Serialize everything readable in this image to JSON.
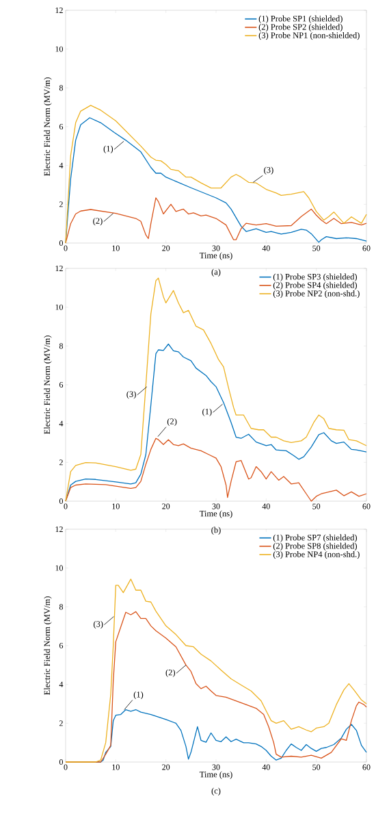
{
  "chart_data": [
    {
      "type": "line",
      "xlabel": "Time (ns)",
      "ylabel": "Electric Field Norm (MV/m)",
      "xlim": [
        0,
        60
      ],
      "ylim": [
        0,
        12
      ],
      "xticks": [
        0,
        10,
        20,
        30,
        40,
        50,
        60
      ],
      "yticks": [
        0,
        2,
        4,
        6,
        8,
        10,
        12
      ],
      "legend": "top right",
      "series": [
        {
          "name": "(1) Probe SP1 (shielded)",
          "color": "#0072bd",
          "x": [
            0,
            1,
            2,
            3,
            4.8,
            7,
            9.7,
            12,
            15,
            17,
            18,
            19,
            20,
            25,
            30,
            32,
            33,
            35,
            36,
            37,
            38,
            40,
            41,
            43,
            45,
            47,
            48,
            49,
            50.5,
            51,
            52,
            54,
            56,
            58,
            60
          ],
          "values": [
            0,
            3.3,
            5.3,
            6.1,
            6.46,
            6.2,
            5.7,
            5.3,
            4.7,
            3.9,
            3.6,
            3.6,
            3.4,
            2.85,
            2.33,
            2.07,
            1.75,
            0.87,
            0.6,
            0.67,
            0.74,
            0.55,
            0.6,
            0.46,
            0.55,
            0.71,
            0.67,
            0.48,
            0.04,
            0.17,
            0.33,
            0.23,
            0.27,
            0.23,
            0.1
          ]
        },
        {
          "name": "(2) Probe SP2 (shielded)",
          "color": "#d95319",
          "x": [
            0,
            1,
            2,
            3,
            5,
            10,
            14,
            15,
            16,
            16.5,
            17,
            18,
            18.5,
            19.5,
            21,
            22,
            23.5,
            24.5,
            25.5,
            27,
            28,
            30,
            32,
            33.5,
            34,
            35,
            36,
            38,
            40,
            42,
            45,
            47,
            49,
            50,
            51,
            52,
            53.5,
            55,
            57,
            59,
            60
          ],
          "values": [
            0,
            1.0,
            1.5,
            1.65,
            1.73,
            1.53,
            1.27,
            1.12,
            0.42,
            0.23,
            1.0,
            2.33,
            2.14,
            1.5,
            2.0,
            1.63,
            1.75,
            1.5,
            1.56,
            1.4,
            1.44,
            1.27,
            0.93,
            0.17,
            0.17,
            0.74,
            1.02,
            0.93,
            1.0,
            0.87,
            0.9,
            1.37,
            1.75,
            1.44,
            1.18,
            1.0,
            1.27,
            1.0,
            1.06,
            0.93,
            1.02
          ]
        },
        {
          "name": "(3) Probe NP1 (non-shielded)",
          "color": "#edb120",
          "x": [
            0,
            1,
            2,
            3,
            5,
            7,
            10,
            15,
            17,
            18,
            19,
            20,
            21,
            22.5,
            24,
            25,
            27,
            29,
            31,
            33,
            34,
            35,
            36.5,
            38,
            40,
            42,
            43,
            45,
            47.5,
            48.5,
            50,
            51.5,
            52.5,
            53.5,
            55.5,
            57,
            59,
            60
          ],
          "values": [
            0,
            4.5,
            6.2,
            6.8,
            7.1,
            6.85,
            6.3,
            5.0,
            4.43,
            4.27,
            4.24,
            4.05,
            3.8,
            3.73,
            3.4,
            3.4,
            3.1,
            2.84,
            2.84,
            3.4,
            3.54,
            3.4,
            3.13,
            3.1,
            2.77,
            2.58,
            2.46,
            2.52,
            2.65,
            2.33,
            1.63,
            1.18,
            1.37,
            1.6,
            1.02,
            1.35,
            1.02,
            1.48
          ]
        }
      ],
      "annotations": [
        {
          "text": "(1)",
          "x": 11.6,
          "y": 5.25
        },
        {
          "text": "(2)",
          "x": 9.5,
          "y": 1.53
        },
        {
          "text": "(3)",
          "x": 37.4,
          "y": 3.13
        },
        "(a)"
      ]
    },
    {
      "type": "line",
      "xlabel": "Time (ns)",
      "ylabel": "Electric Field Norm (MV/m)",
      "xlim": [
        0,
        60
      ],
      "ylim": [
        0,
        12
      ],
      "xticks": [
        0,
        10,
        20,
        30,
        40,
        50,
        60
      ],
      "yticks": [
        0,
        2,
        4,
        6,
        8,
        10,
        12
      ],
      "legend": "top right",
      "series": [
        {
          "name": "(1) Probe SP3 (shielded)",
          "color": "#0072bd",
          "x": [
            0,
            1,
            2,
            4,
            6,
            10,
            13,
            14,
            15,
            16,
            17,
            18,
            18.5,
            19.5,
            20.5,
            21.5,
            22.5,
            23.5,
            25,
            26,
            28,
            29,
            30,
            31.5,
            33,
            34,
            35,
            36.5,
            38,
            40,
            41,
            42,
            44,
            45.5,
            46.5,
            47.5,
            49,
            50.5,
            51.5,
            53,
            54,
            55.5,
            57,
            58,
            60
          ],
          "values": [
            0,
            0.83,
            1.02,
            1.14,
            1.12,
            0.99,
            0.89,
            0.95,
            1.4,
            2.4,
            4.95,
            7.6,
            7.8,
            7.77,
            8.1,
            7.75,
            7.7,
            7.43,
            7.24,
            6.86,
            6.48,
            6.16,
            5.9,
            5.08,
            4.06,
            3.3,
            3.24,
            3.45,
            3.05,
            2.86,
            2.92,
            2.64,
            2.6,
            2.35,
            2.16,
            2.29,
            2.79,
            3.43,
            3.53,
            3.11,
            2.98,
            3.05,
            2.67,
            2.64,
            2.54
          ]
        },
        {
          "name": "(2) Probe SP4 (shielded)",
          "color": "#d95319",
          "x": [
            0,
            1,
            2,
            4,
            8,
            13,
            14,
            15,
            16,
            17,
            18,
            18.5,
            19.5,
            20.5,
            21.5,
            22.5,
            23.5,
            25,
            27,
            28.5,
            30,
            31,
            32,
            32.3,
            33,
            34,
            35,
            36.5,
            37,
            38,
            39,
            40,
            41,
            42.5,
            43.5,
            45,
            46.5,
            48,
            49,
            50,
            51,
            53,
            54,
            55.5,
            57,
            58.5,
            60
          ],
          "values": [
            0,
            0.7,
            0.83,
            0.89,
            0.85,
            0.66,
            0.7,
            1.02,
            1.9,
            2.67,
            3.24,
            3.17,
            2.92,
            3.17,
            2.92,
            2.86,
            2.95,
            2.73,
            2.6,
            2.41,
            2.22,
            1.78,
            0.83,
            0.19,
            1.02,
            2.03,
            2.1,
            1.14,
            1.21,
            1.78,
            1.52,
            1.14,
            1.52,
            1.08,
            1.27,
            0.89,
            0.95,
            0.38,
            0,
            0.25,
            0.38,
            0.51,
            0.57,
            0.28,
            0.48,
            0.25,
            0.38
          ]
        },
        {
          "name": "(3) Probe NP2 (non-shd.)",
          "color": "#edb120",
          "x": [
            0,
            1,
            2,
            4,
            6,
            10,
            13,
            14,
            15,
            16,
            17,
            18,
            18.5,
            19.5,
            20,
            21.5,
            22.5,
            23.5,
            24.5,
            26,
            27.5,
            29,
            30.5,
            31.5,
            32.5,
            33.5,
            34,
            35.5,
            37,
            38.5,
            39.5,
            41,
            42,
            43.5,
            45,
            47,
            48,
            49.5,
            50.5,
            51.5,
            52.5,
            54,
            55.5,
            56.5,
            58,
            60
          ],
          "values": [
            0,
            1.52,
            1.84,
            1.99,
            1.97,
            1.78,
            1.59,
            1.65,
            2.41,
            5.97,
            9.65,
            11.37,
            11.5,
            10.54,
            10.22,
            10.86,
            10.22,
            9.71,
            9.84,
            9.02,
            8.83,
            8.13,
            7.3,
            6.92,
            5.84,
            4.83,
            4.44,
            4.44,
            3.75,
            3.68,
            3.68,
            3.3,
            3.3,
            3.11,
            3.02,
            3.11,
            3.3,
            4.06,
            4.44,
            4.25,
            3.75,
            3.68,
            3.66,
            3.17,
            3.11,
            2.86
          ]
        }
      ],
      "annotations": [
        {
          "text": "(3)",
          "x": 16.2,
          "y": 5.9
        },
        {
          "text": "(2)",
          "x": 18.4,
          "y": 3.33
        },
        {
          "text": "(1)",
          "x": 31.3,
          "y": 5.0
        },
        "(b)"
      ]
    },
    {
      "type": "line",
      "xlabel": "Time (ns)",
      "ylabel": "Electric Field Norm (MV/m)",
      "xlim": [
        0,
        60
      ],
      "ylim": [
        0,
        12
      ],
      "xticks": [
        0,
        10,
        20,
        30,
        40,
        50,
        60
      ],
      "yticks": [
        0,
        2,
        4,
        6,
        8,
        10,
        12
      ],
      "legend": "top right",
      "series": [
        {
          "name": "(1) Probe SP7 (shielded)",
          "color": "#0072bd",
          "x": [
            0,
            7,
            7.5,
            8,
            9,
            9.5,
            10,
            11,
            12,
            13,
            14,
            15,
            17,
            20,
            22,
            23,
            24,
            24.5,
            25,
            26.3,
            27,
            28,
            29,
            30,
            31,
            32,
            33,
            34,
            35.5,
            36.5,
            38,
            39,
            40,
            41,
            42,
            43,
            44,
            45,
            46,
            47,
            48,
            49,
            50,
            51,
            52,
            53.5,
            55,
            56,
            57,
            58,
            59,
            60
          ],
          "values": [
            0,
            0,
            0.1,
            0.5,
            0.8,
            2.13,
            2.41,
            2.45,
            2.7,
            2.62,
            2.7,
            2.57,
            2.45,
            2.19,
            2.0,
            1.63,
            0.8,
            0.15,
            0.5,
            1.82,
            1.12,
            1.02,
            1.5,
            1.12,
            1.05,
            1.3,
            1.05,
            1.18,
            0.99,
            0.99,
            0.93,
            0.8,
            0.6,
            0.3,
            0.1,
            0.2,
            0.6,
            0.93,
            0.75,
            0.6,
            0.9,
            0.7,
            0.55,
            0.7,
            0.75,
            0.9,
            1.24,
            1.69,
            1.94,
            1.63,
            0.86,
            0.5
          ]
        },
        {
          "name": "(2) Probe SP8 (shielded)",
          "color": "#d95319",
          "x": [
            0,
            7,
            8,
            9,
            9.5,
            10,
            11,
            12,
            13,
            14,
            15,
            16,
            17,
            18,
            20,
            22,
            24,
            25,
            26,
            27,
            28,
            29,
            30,
            32,
            34,
            36,
            38,
            39.5,
            40.5,
            41.5,
            42,
            43,
            45,
            47,
            49,
            51,
            53,
            55,
            56,
            57,
            58,
            58.5,
            59.5,
            60
          ],
          "values": [
            0,
            0,
            0.4,
            0.86,
            4.17,
            6.2,
            6.96,
            7.72,
            7.59,
            7.75,
            7.4,
            7.4,
            7.02,
            6.77,
            6.39,
            5.94,
            5.0,
            4.67,
            4.04,
            3.78,
            3.91,
            3.66,
            3.43,
            3.34,
            3.15,
            2.96,
            2.77,
            2.45,
            1.82,
            1.0,
            0.4,
            0.25,
            0.3,
            0.25,
            0.35,
            0.2,
            0.5,
            1.2,
            1.12,
            2.13,
            2.9,
            3.09,
            2.96,
            2.83
          ]
        },
        {
          "name": "(3) Probe NP4 (non-shd.)",
          "color": "#edb120",
          "x": [
            0,
            6,
            7,
            8,
            9,
            9.5,
            10,
            10.5,
            11.5,
            13,
            14,
            15,
            16,
            17,
            18,
            20,
            22,
            24,
            25.5,
            27,
            29,
            31,
            33,
            35,
            37,
            39,
            40,
            41,
            42,
            43.5,
            45,
            46.5,
            48,
            49,
            50,
            51.5,
            52.5,
            54,
            55.5,
            56.5,
            57.5,
            59,
            60
          ],
          "values": [
            0,
            0,
            0.1,
            1.0,
            3.5,
            6.0,
            9.11,
            9.11,
            8.73,
            9.43,
            8.86,
            8.86,
            8.29,
            8.25,
            7.78,
            7.02,
            6.57,
            6.0,
            5.94,
            5.56,
            5.21,
            4.74,
            4.29,
            3.97,
            3.66,
            3.15,
            2.64,
            2.13,
            2.0,
            2.13,
            1.69,
            1.82,
            1.65,
            1.56,
            1.75,
            1.82,
            2.0,
            2.96,
            3.72,
            4.04,
            3.72,
            3.2,
            3.0
          ]
        }
      ],
      "annotations": [
        {
          "text": "(3)",
          "x": 9.6,
          "y": 7.5
        },
        {
          "text": "(1)",
          "x": 11.7,
          "y": 2.7
        },
        {
          "text": "(2)",
          "x": 24,
          "y": 5.0
        },
        "(c)"
      ]
    }
  ]
}
